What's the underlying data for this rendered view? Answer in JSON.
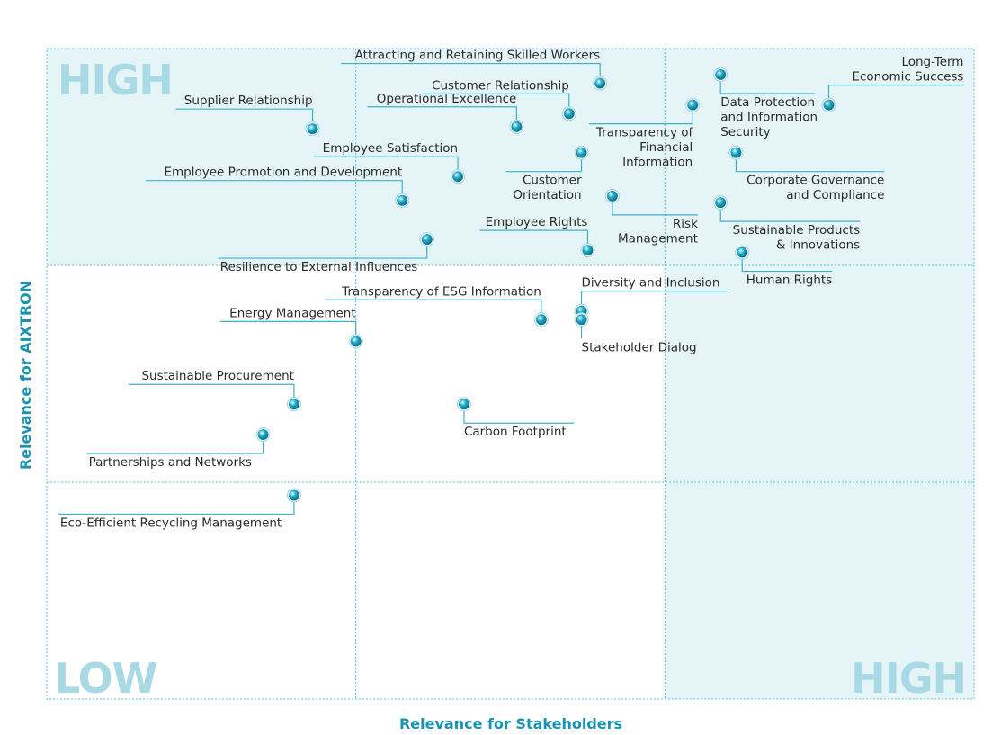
{
  "colors": {
    "accent": "#1a93b0",
    "marker": "#1faac9",
    "zone_fill": "#e4f4f7",
    "corner_text": "#a9d9e4"
  },
  "chart_data": {
    "type": "scatter",
    "xlabel": "Relevance for Stakeholders",
    "ylabel": "Relevance for AIXTRON",
    "corner_labels": {
      "top_left": "HIGH",
      "bottom_left": "LOW",
      "bottom_right": "HIGH"
    },
    "xlim": [
      0,
      3
    ],
    "ylim": [
      0,
      3
    ],
    "grid": true,
    "points": [
      {
        "label": [
          "Attracting and Retaining Skilled Workers"
        ],
        "x": 1.79,
        "y": 2.84
      },
      {
        "label": [
          "Customer Relationship"
        ],
        "x": 1.69,
        "y": 2.7
      },
      {
        "label": [
          "Operational Excellence"
        ],
        "x": 1.52,
        "y": 2.64
      },
      {
        "label": [
          "Supplier Relationship"
        ],
        "x": 0.86,
        "y": 2.63
      },
      {
        "label": [
          "Employee Satisfaction"
        ],
        "x": 1.33,
        "y": 2.41
      },
      {
        "label": [
          "Employee Promotion and Development"
        ],
        "x": 1.15,
        "y": 2.3
      },
      {
        "label": [
          "Resilience to External Influences"
        ],
        "x": 1.23,
        "y": 2.12
      },
      {
        "label": [
          "Customer",
          "Orientation"
        ],
        "x": 1.73,
        "y": 2.52
      },
      {
        "label": [
          "Employee Rights"
        ],
        "x": 1.75,
        "y": 2.07
      },
      {
        "label": [
          "Risk",
          "Management"
        ],
        "x": 1.83,
        "y": 2.32
      },
      {
        "label": [
          "Transparency of",
          "Financial",
          "Information"
        ],
        "x": 2.09,
        "y": 2.74
      },
      {
        "label": [
          "Data Protection",
          "and Information",
          "Security"
        ],
        "x": 2.18,
        "y": 2.88
      },
      {
        "label": [
          "Long-Term",
          "Economic Success"
        ],
        "x": 2.53,
        "y": 2.74
      },
      {
        "label": [
          "Corporate Governance",
          "and Compliance"
        ],
        "x": 2.23,
        "y": 2.52
      },
      {
        "label": [
          "Sustainable Products",
          "& Innovations"
        ],
        "x": 2.18,
        "y": 2.29
      },
      {
        "label": [
          "Human Rights"
        ],
        "x": 2.25,
        "y": 2.06
      },
      {
        "label": [
          "Transparency of ESG Information"
        ],
        "x": 1.6,
        "y": 1.75
      },
      {
        "label": [
          "Diversity and Inclusion"
        ],
        "x": 1.73,
        "y": 1.79
      },
      {
        "label": [
          "Stakeholder Dialog"
        ],
        "x": 1.73,
        "y": 1.75
      },
      {
        "label": [
          "Energy Management"
        ],
        "x": 1.0,
        "y": 1.65
      },
      {
        "label": [
          "Sustainable Procurement"
        ],
        "x": 0.8,
        "y": 1.36
      },
      {
        "label": [
          "Carbon Footprint"
        ],
        "x": 1.35,
        "y": 1.36
      },
      {
        "label": [
          "Partnerships and Networks"
        ],
        "x": 0.7,
        "y": 1.22
      },
      {
        "label": [
          "Eco-Efficient Recycling Management"
        ],
        "x": 0.8,
        "y": 0.94
      }
    ]
  }
}
